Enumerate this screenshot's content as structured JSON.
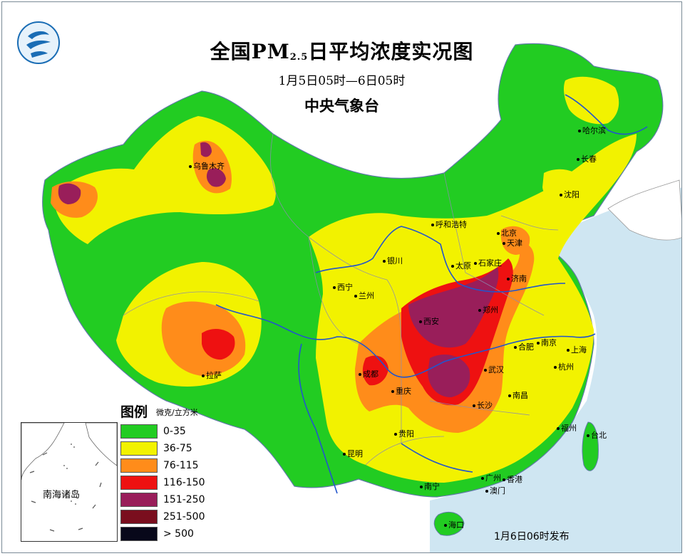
{
  "title": {
    "prefix": "全国PM",
    "subscript": "2.5",
    "suffix": "日平均浓度实况图",
    "time_range": "1月5日05时—6日05时",
    "organization": "中央气象台"
  },
  "cities": [
    {
      "name": "乌鲁木齐"
    },
    {
      "name": "哈尔滨"
    },
    {
      "name": "长春"
    },
    {
      "name": "沈阳"
    },
    {
      "name": "呼和浩特"
    },
    {
      "name": "北京"
    },
    {
      "name": "天津"
    },
    {
      "name": "银川"
    },
    {
      "name": "太原"
    },
    {
      "name": "石家庄"
    },
    {
      "name": "济南"
    },
    {
      "name": "西宁"
    },
    {
      "name": "兰州"
    },
    {
      "name": "西安"
    },
    {
      "name": "郑州"
    },
    {
      "name": "合肥"
    },
    {
      "name": "南京"
    },
    {
      "name": "上海"
    },
    {
      "name": "杭州"
    },
    {
      "name": "成都"
    },
    {
      "name": "重庆"
    },
    {
      "name": "武汉"
    },
    {
      "name": "拉萨"
    },
    {
      "name": "南昌"
    },
    {
      "name": "长沙"
    },
    {
      "name": "贵阳"
    },
    {
      "name": "福州"
    },
    {
      "name": "台北"
    },
    {
      "name": "昆明"
    },
    {
      "name": "南宁"
    },
    {
      "name": "广州"
    },
    {
      "name": "香港"
    },
    {
      "name": "澳门"
    },
    {
      "name": "海口"
    }
  ],
  "legend": {
    "title": "图例",
    "unit": "微克/立方米",
    "items": [
      {
        "label": "0-35",
        "color": "#22cc22"
      },
      {
        "label": "36-75",
        "color": "#f2f200"
      },
      {
        "label": "76-115",
        "color": "#ff8c1a"
      },
      {
        "label": "116-150",
        "color": "#ee1111"
      },
      {
        "label": "151-250",
        "color": "#991e5a"
      },
      {
        "label": "251-500",
        "color": "#7a0e1e"
      },
      {
        "label": "> 500",
        "color": "#08081a"
      }
    ]
  },
  "inset": {
    "label": "南海诸岛"
  },
  "publish_time": "1月6日06时发布",
  "colors": {
    "sea": "#cfe6f2",
    "land_outside": "#ffffff",
    "river": "#2255cc",
    "border": "#7a8a96"
  }
}
